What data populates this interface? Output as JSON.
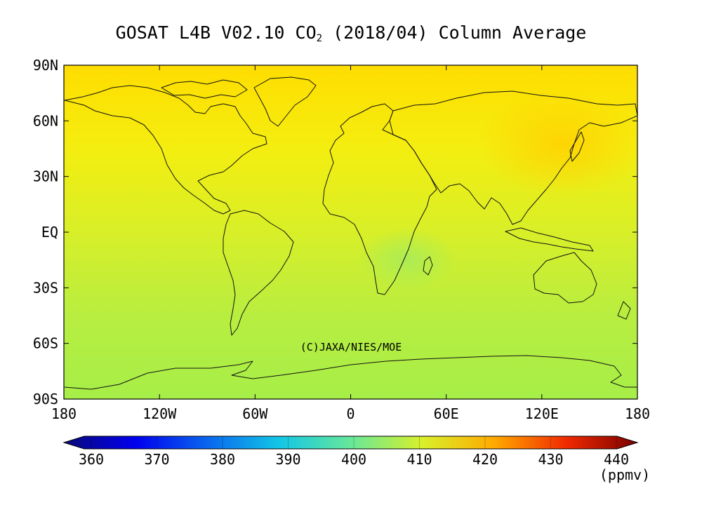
{
  "title_prefix": "GOSAT L4B V02.10 CO",
  "title_subscript": "2",
  "title_suffix": " (2018/04) Column Average",
  "map": {
    "lat_ticks": [
      "90N",
      "60N",
      "30N",
      "EQ",
      "30S",
      "60S",
      "90S"
    ],
    "lon_ticks": [
      "180",
      "120W",
      "60W",
      "0",
      "60E",
      "120E",
      "180"
    ],
    "credit": "(C)JAXA/NIES/MOE",
    "field_colors": {
      "north_polar": "#ffdd00",
      "north_mid": "#f4ee10",
      "tropics": "#d8ef28",
      "south_mid": "#b8ee40",
      "south_polar": "#a6ee48",
      "east_asia_high": "#ffd000"
    }
  },
  "colorbar": {
    "tick_labels": [
      "360",
      "370",
      "380",
      "390",
      "400",
      "410",
      "420",
      "430",
      "440"
    ],
    "unit": "(ppmv)",
    "colors": [
      "#0a0a7a",
      "#0000ee",
      "#0a66ee",
      "#12c6e6",
      "#66e89a",
      "#d8f02a",
      "#ffaa00",
      "#f02a00",
      "#7a0000"
    ]
  }
}
